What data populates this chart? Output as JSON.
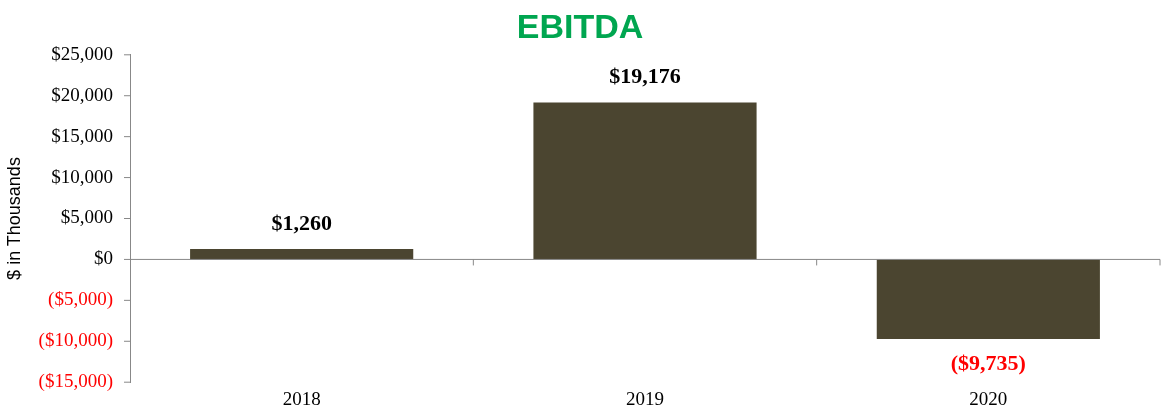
{
  "chart_data": {
    "type": "bar",
    "title": "EBITDA",
    "ylabel": "$ in Thousands",
    "categories": [
      "2018",
      "2019",
      "2020"
    ],
    "values": [
      1260,
      19176,
      -9735
    ],
    "value_labels": [
      "$1,260",
      "$19,176",
      "($9,735)"
    ],
    "color": "#4b4530",
    "ylim": [
      -15000,
      25000
    ],
    "yticks": [
      {
        "value": -15000,
        "label": "($15,000)"
      },
      {
        "value": -10000,
        "label": "($10,000)"
      },
      {
        "value": -5000,
        "label": "($5,000)"
      },
      {
        "value": 0,
        "label": "$0"
      },
      {
        "value": 5000,
        "label": "$5,000"
      },
      {
        "value": 10000,
        "label": "$10,000"
      },
      {
        "value": 15000,
        "label": "$15,000"
      },
      {
        "value": 20000,
        "label": "$20,000"
      },
      {
        "value": 25000,
        "label": "$25,000"
      }
    ],
    "legend": false
  }
}
